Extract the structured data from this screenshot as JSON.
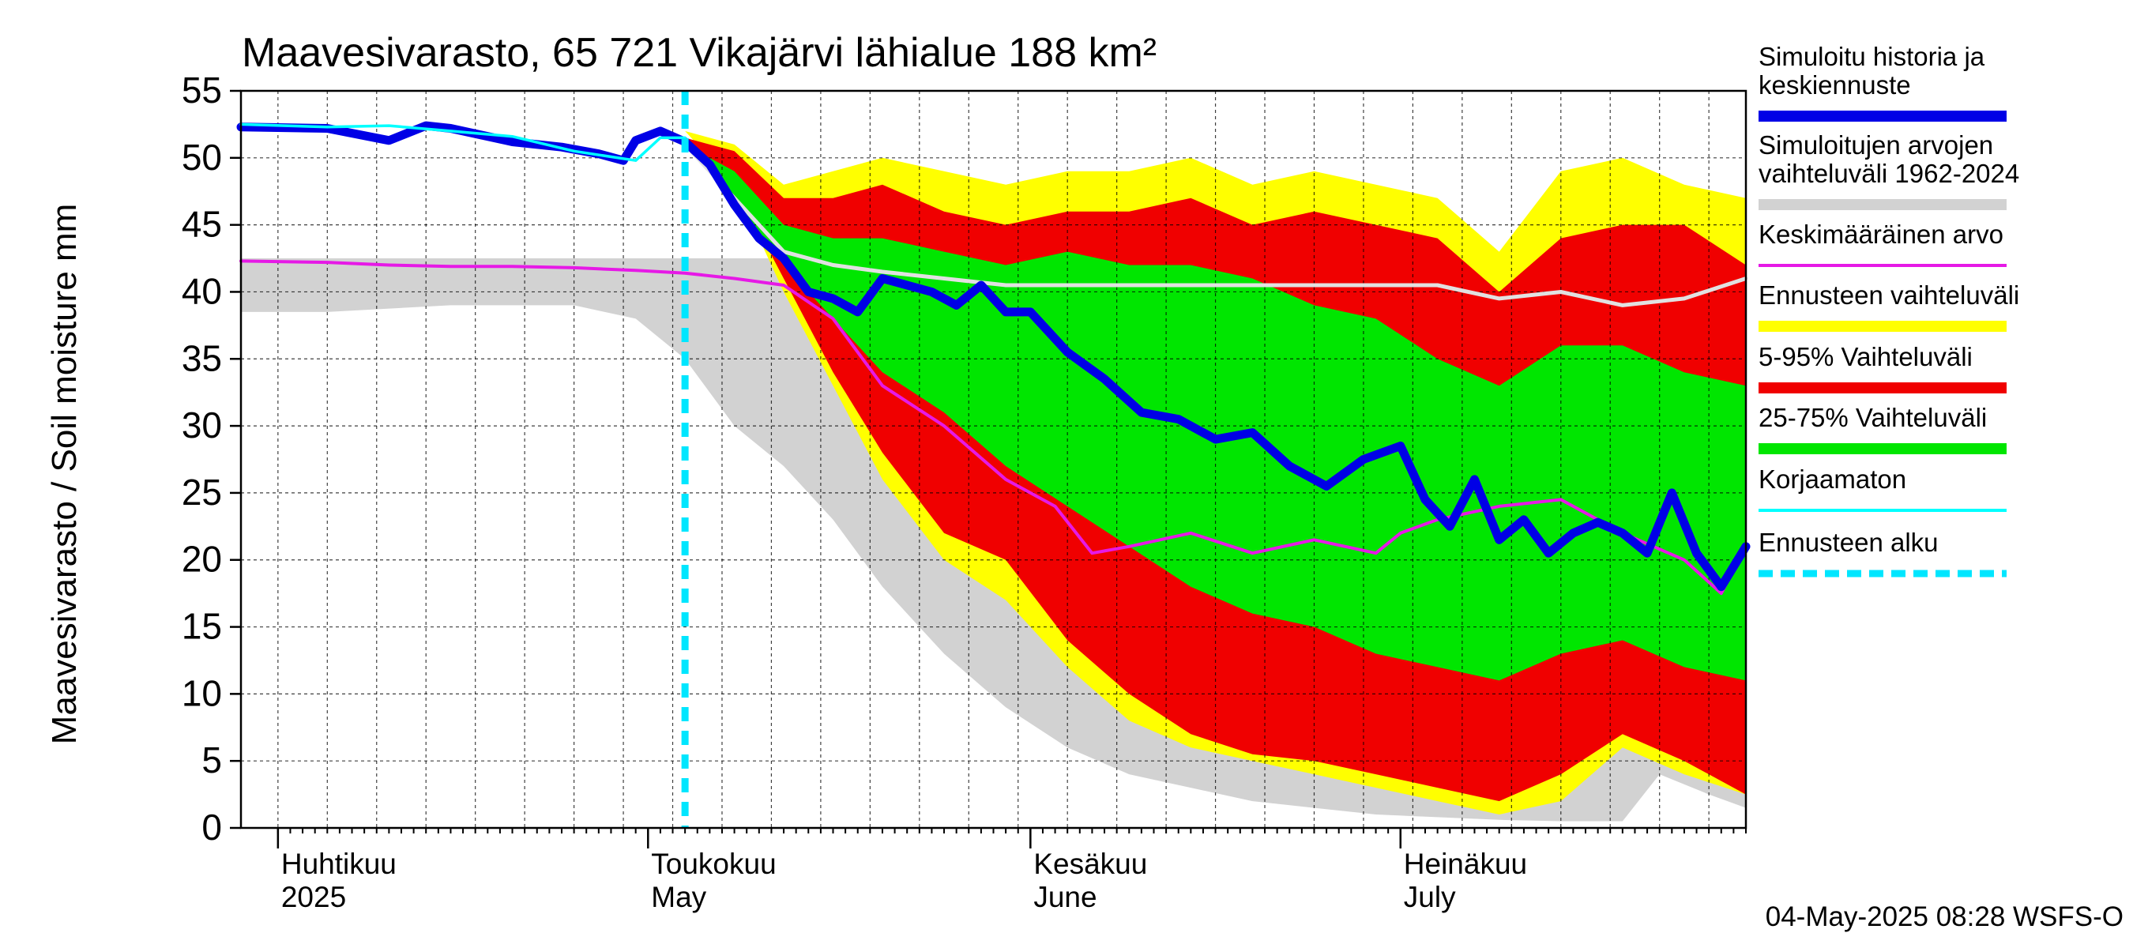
{
  "chart_data": {
    "type": "area",
    "title": "Maavesivarasto, 65 721 Vikajärvi lähialue 188 km²",
    "ylabel": "Maavesivarasto / Soil moisture   mm",
    "xlabel": "",
    "ylim": [
      0,
      55
    ],
    "yticks": [
      0,
      5,
      10,
      15,
      20,
      25,
      30,
      35,
      40,
      45,
      50,
      55
    ],
    "xlim": [
      "2025-03-29",
      "2025-07-29"
    ],
    "grid": true,
    "legend_position": "right",
    "x_labels": [
      {
        "date": "2025-04-01",
        "line1": "Huhtikuu",
        "line2": "2025"
      },
      {
        "date": "2025-05-01",
        "line1": "Toukokuu",
        "line2": "May"
      },
      {
        "date": "2025-06-01",
        "line1": "Kesäkuu",
        "line2": "June"
      },
      {
        "date": "2025-07-01",
        "line1": "Heinäkuu",
        "line2": "July"
      }
    ],
    "forecast_start": "2025-05-04",
    "footer": "04-May-2025 08:28 WSFS-O",
    "legend": [
      {
        "label": "Simuloitu historia ja keskiennuste",
        "color": "#0000e6",
        "style": "thick"
      },
      {
        "label": "Simuloitujen arvojen vaihteluväli 1962-2024",
        "color": "#d2d2d2",
        "style": "thick"
      },
      {
        "label": "Keskimääräinen arvo",
        "color": "#e619e6",
        "style": "thin"
      },
      {
        "label": "Ennusteen vaihteluväli",
        "color": "#ffff00",
        "style": "thick"
      },
      {
        "label": "5-95% Vaihteluväli",
        "color": "#f00000",
        "style": "thick"
      },
      {
        "label": "25-75% Vaihteluväli",
        "color": "#00e600",
        "style": "thick"
      },
      {
        "label": "Korjaamaton",
        "color": "#00ffff",
        "style": "thin"
      },
      {
        "label": "Ennusteen alku",
        "color": "#00e6ff",
        "style": "dashed"
      }
    ],
    "series": [
      {
        "key": "hist_range",
        "x": [
          "2025-03-29",
          "2025-04-05",
          "2025-04-15",
          "2025-04-25",
          "2025-04-30",
          "2025-05-04",
          "2025-05-08",
          "2025-05-12",
          "2025-05-16",
          "2025-05-20",
          "2025-05-25",
          "2025-05-30",
          "2025-06-04",
          "2025-06-09",
          "2025-06-14",
          "2025-06-19",
          "2025-06-24",
          "2025-06-29",
          "2025-07-04",
          "2025-07-09",
          "2025-07-14",
          "2025-07-19",
          "2025-07-22",
          "2025-07-26",
          "2025-07-29"
        ],
        "upper": [
          42.5,
          42.5,
          42.5,
          42.5,
          42.5,
          42.5,
          42.5,
          42.5,
          42.5,
          42.5,
          42.5,
          42.5,
          42.5,
          42.5,
          42.5,
          42.5,
          42.5,
          42.5,
          42.5,
          42.5,
          42.5,
          42.5,
          42.5,
          42.5,
          42.5
        ],
        "lower": [
          38.5,
          38.5,
          39,
          39,
          38,
          35,
          30,
          27,
          23,
          18,
          13,
          9,
          6,
          4,
          3,
          2,
          1.5,
          1,
          0.8,
          0.6,
          0.5,
          0.5,
          4,
          2.5,
          1.5
        ]
      },
      {
        "key": "forecast_range",
        "x": [
          "2025-05-04",
          "2025-05-08",
          "2025-05-12",
          "2025-05-16",
          "2025-05-20",
          "2025-05-25",
          "2025-05-30",
          "2025-06-04",
          "2025-06-09",
          "2025-06-14",
          "2025-06-19",
          "2025-06-24",
          "2025-06-29",
          "2025-07-04",
          "2025-07-09",
          "2025-07-14",
          "2025-07-19",
          "2025-07-24",
          "2025-07-29"
        ],
        "upper": [
          52,
          51,
          48,
          49,
          50,
          49,
          48,
          49,
          49,
          50,
          48,
          49,
          48,
          47,
          43,
          49,
          50,
          48,
          47
        ],
        "lower": [
          52,
          48,
          40,
          33,
          26,
          20,
          17,
          12,
          8,
          6,
          5,
          4,
          3,
          2,
          1,
          2,
          6,
          4,
          2.5
        ]
      },
      {
        "key": "p5_95",
        "x": [
          "2025-05-04",
          "2025-05-08",
          "2025-05-12",
          "2025-05-16",
          "2025-05-20",
          "2025-05-25",
          "2025-05-30",
          "2025-06-04",
          "2025-06-09",
          "2025-06-14",
          "2025-06-19",
          "2025-06-24",
          "2025-06-29",
          "2025-07-04",
          "2025-07-09",
          "2025-07-14",
          "2025-07-19",
          "2025-07-24",
          "2025-07-29"
        ],
        "upper": [
          51.5,
          50.5,
          47,
          47,
          48,
          46,
          45,
          46,
          46,
          47,
          45,
          46,
          45,
          44,
          40,
          44,
          45,
          45,
          42
        ],
        "lower": [
          51.5,
          48,
          41,
          34,
          28,
          22,
          20,
          14,
          10,
          7,
          5.5,
          5,
          4,
          3,
          2,
          4,
          7,
          5,
          2.5
        ]
      },
      {
        "key": "p25_75",
        "x": [
          "2025-05-04",
          "2025-05-08",
          "2025-05-12",
          "2025-05-16",
          "2025-05-20",
          "2025-05-25",
          "2025-05-30",
          "2025-06-04",
          "2025-06-09",
          "2025-06-14",
          "2025-06-19",
          "2025-06-24",
          "2025-06-29",
          "2025-07-04",
          "2025-07-09",
          "2025-07-14",
          "2025-07-19",
          "2025-07-24",
          "2025-07-29"
        ],
        "upper": [
          51,
          49,
          45,
          44,
          44,
          43,
          42,
          43,
          42,
          42,
          41,
          39,
          38,
          35,
          33,
          36,
          36,
          34,
          33
        ],
        "lower": [
          51,
          47,
          42,
          38,
          34,
          31,
          27,
          24,
          21,
          18,
          16,
          15,
          13,
          12,
          11,
          13,
          14,
          12,
          11
        ]
      },
      {
        "key": "mean",
        "x": [
          "2025-03-29",
          "2025-04-05",
          "2025-04-10",
          "2025-04-15",
          "2025-04-20",
          "2025-04-25",
          "2025-04-30",
          "2025-05-04",
          "2025-05-08",
          "2025-05-12",
          "2025-05-16",
          "2025-05-20",
          "2025-05-25",
          "2025-05-30",
          "2025-06-03",
          "2025-06-06",
          "2025-06-09",
          "2025-06-14",
          "2025-06-19",
          "2025-06-24",
          "2025-06-29",
          "2025-07-01",
          "2025-07-04",
          "2025-07-09",
          "2025-07-14",
          "2025-07-19",
          "2025-07-24",
          "2025-07-27",
          "2025-07-29"
        ],
        "values": [
          42.3,
          42.2,
          42.0,
          41.9,
          41.9,
          41.8,
          41.6,
          41.4,
          41.0,
          40.5,
          38,
          33,
          30,
          26,
          24,
          20.5,
          21,
          22,
          20.5,
          21.5,
          20.5,
          22,
          23,
          24,
          24.5,
          22,
          20,
          17.5,
          21
        ]
      },
      {
        "key": "median",
        "x": [
          "2025-05-04",
          "2025-05-08",
          "2025-05-12",
          "2025-05-16",
          "2025-05-20",
          "2025-05-25",
          "2025-05-30",
          "2025-06-04",
          "2025-06-09",
          "2025-06-14",
          "2025-06-19",
          "2025-06-24",
          "2025-06-29",
          "2025-07-04",
          "2025-07-09",
          "2025-07-14",
          "2025-07-19",
          "2025-07-24",
          "2025-07-29"
        ],
        "values": [
          51,
          47,
          43,
          42,
          41.5,
          41,
          40.5,
          40.5,
          40.5,
          40.5,
          40.5,
          40.5,
          40.5,
          40.5,
          39.5,
          40,
          39,
          39.5,
          41
        ]
      },
      {
        "key": "uncorrected",
        "x": [
          "2025-03-29",
          "2025-04-05",
          "2025-04-10",
          "2025-04-15",
          "2025-04-20",
          "2025-04-25",
          "2025-04-30",
          "2025-05-02",
          "2025-05-04"
        ],
        "values": [
          52.5,
          52.3,
          52.4,
          52.0,
          51.6,
          50.5,
          49.8,
          51.5,
          51.5
        ]
      },
      {
        "key": "simulated",
        "x": [
          "2025-03-29",
          "2025-04-05",
          "2025-04-10",
          "2025-04-13",
          "2025-04-15",
          "2025-04-20",
          "2025-04-24",
          "2025-04-27",
          "2025-04-29",
          "2025-04-30",
          "2025-05-02",
          "2025-05-04",
          "2025-05-06",
          "2025-05-08",
          "2025-05-10",
          "2025-05-12",
          "2025-05-14",
          "2025-05-16",
          "2025-05-18",
          "2025-05-20",
          "2025-05-22",
          "2025-05-24",
          "2025-05-26",
          "2025-05-28",
          "2025-05-30",
          "2025-06-01",
          "2025-06-04",
          "2025-06-07",
          "2025-06-10",
          "2025-06-13",
          "2025-06-16",
          "2025-06-19",
          "2025-06-22",
          "2025-06-25",
          "2025-06-28",
          "2025-07-01",
          "2025-07-03",
          "2025-07-05",
          "2025-07-07",
          "2025-07-09",
          "2025-07-11",
          "2025-07-13",
          "2025-07-15",
          "2025-07-17",
          "2025-07-19",
          "2025-07-21",
          "2025-07-23",
          "2025-07-25",
          "2025-07-27",
          "2025-07-29"
        ],
        "values": [
          52.3,
          52.2,
          51.3,
          52.4,
          52.2,
          51.2,
          50.8,
          50.3,
          49.8,
          51.3,
          52.0,
          51.2,
          49.5,
          46.5,
          44,
          42.5,
          40,
          39.5,
          38.5,
          41,
          40.5,
          40,
          39,
          40.5,
          38.5,
          38.5,
          35.5,
          33.5,
          31,
          30.5,
          29,
          29.5,
          27,
          25.5,
          27.5,
          28.5,
          24.5,
          22.5,
          26,
          21.5,
          23,
          20.5,
          22,
          22.8,
          22,
          20.5,
          25,
          20.5,
          18,
          21
        ]
      }
    ]
  }
}
